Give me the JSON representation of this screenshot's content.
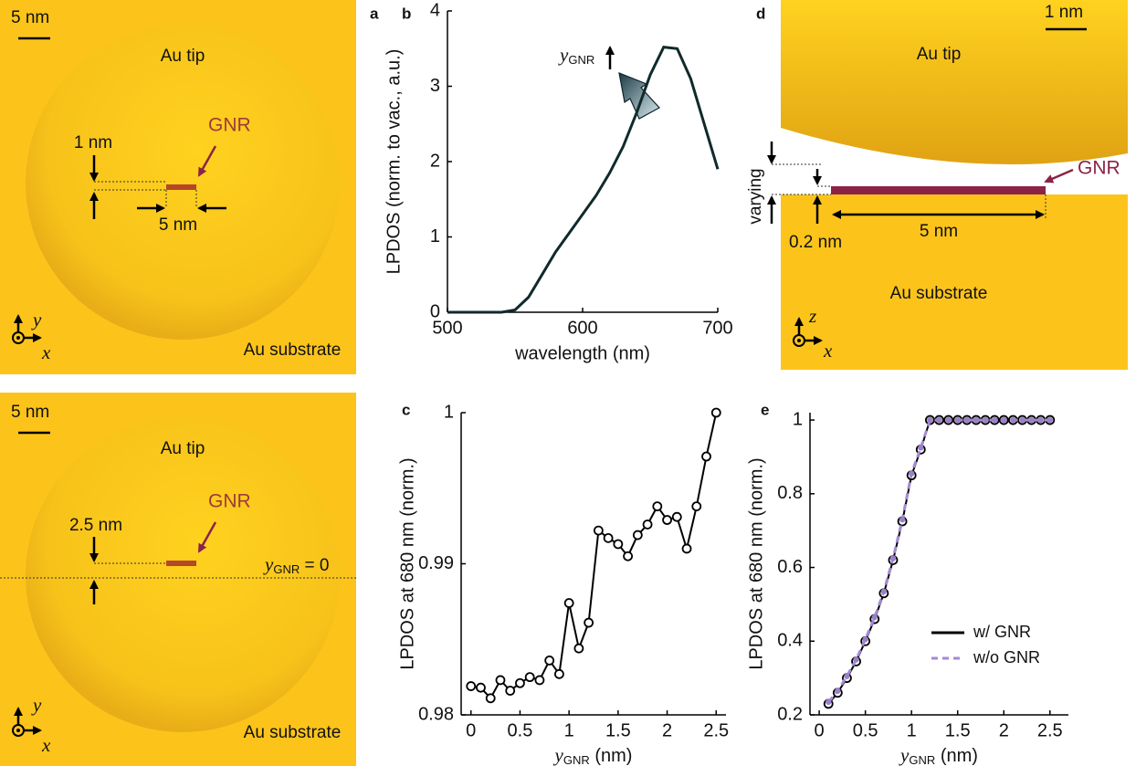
{
  "panel_labels": [
    "a",
    "b",
    "c",
    "d",
    "e"
  ],
  "panel_a_top": {
    "scale": "5 nm",
    "tip": "Au tip",
    "substrate": "Au substrate",
    "gnr": "GNR",
    "gap": "1 nm",
    "length": "5 nm",
    "axis_y": "y",
    "axis_x": "x"
  },
  "panel_a_bottom": {
    "scale": "5 nm",
    "tip": "Au tip",
    "substrate": "Au substrate",
    "gnr": "GNR",
    "offset": "2.5 nm",
    "line_var": "y",
    "line_sub": "GNR",
    "line_rest": " = 0",
    "axis_y": "y",
    "axis_x": "x"
  },
  "panel_d": {
    "scale": "1 nm",
    "tip": "Au tip",
    "substrate": "Au substrate",
    "gnr": "GNR",
    "varying": "varying",
    "gap": "0.2 nm",
    "length": "5 nm",
    "axis_z": "z",
    "axis_x": "x"
  },
  "chart_data": [
    {
      "type": "line",
      "x_label": "wavelength (nm)",
      "y_label": "LPDOS (norm. to vac., a.u.)",
      "annotation": {
        "var": "y",
        "sub": "GNR"
      },
      "x": [
        500,
        510,
        520,
        530,
        540,
        550,
        560,
        570,
        580,
        590,
        600,
        610,
        620,
        630,
        640,
        650,
        660,
        670,
        680,
        690,
        700
      ],
      "values": [
        0,
        0,
        0,
        0,
        0,
        0.03,
        0.2,
        0.5,
        0.8,
        1.05,
        1.3,
        1.55,
        1.85,
        2.2,
        2.65,
        3.15,
        3.52,
        3.5,
        3.1,
        2.5,
        1.9
      ],
      "color": "#102a2a",
      "xlim": [
        500,
        700
      ],
      "ylim": [
        0,
        4
      ],
      "xticks": [
        500,
        600,
        700
      ],
      "yticks": [
        0,
        1,
        2,
        3,
        4
      ]
    },
    {
      "type": "line",
      "x_label": {
        "var": "y",
        "sub": "GNR",
        "unit": " (nm)"
      },
      "y_label": "LPDOS at 680 nm (norm.)",
      "x": [
        0,
        0.1,
        0.2,
        0.3,
        0.4,
        0.5,
        0.6,
        0.7,
        0.8,
        0.9,
        1,
        1.1,
        1.2,
        1.3,
        1.4,
        1.5,
        1.6,
        1.7,
        1.8,
        1.9,
        2,
        2.1,
        2.2,
        2.3,
        2.4,
        2.5
      ],
      "values": [
        0.9819,
        0.9818,
        0.9811,
        0.9823,
        0.9816,
        0.9821,
        0.9825,
        0.9823,
        0.9836,
        0.9827,
        0.9874,
        0.9844,
        0.9861,
        0.9922,
        0.9917,
        0.9913,
        0.9905,
        0.9919,
        0.9926,
        0.9938,
        0.9929,
        0.9931,
        0.991,
        0.9938,
        0.9971,
        1.0
      ],
      "color": "#000000",
      "marker": "o",
      "marker_fill": "#ffffff",
      "xlim": [
        -0.1,
        2.6
      ],
      "ylim": [
        0.98,
        1.0
      ],
      "xticks": [
        0,
        0.5,
        1,
        1.5,
        2,
        2.5
      ],
      "yticks": [
        0.98,
        0.99,
        1
      ]
    },
    {
      "type": "line",
      "x_label": {
        "var": "y",
        "sub": "GNR",
        "unit": " (nm)"
      },
      "y_label": "LPDOS at 680 nm (norm.)",
      "x": [
        0.1,
        0.2,
        0.3,
        0.4,
        0.5,
        0.6,
        0.7,
        0.8,
        0.9,
        1,
        1.1,
        1.2,
        1.3,
        1.4,
        1.5,
        1.6,
        1.7,
        1.8,
        1.9,
        2,
        2.1,
        2.2,
        2.3,
        2.4,
        2.5
      ],
      "series": [
        {
          "name": "w/ GNR",
          "color": "#000000",
          "marker": "o",
          "marker_fill": "#ffffff",
          "values": [
            0.23,
            0.26,
            0.3,
            0.345,
            0.4,
            0.46,
            0.53,
            0.62,
            0.725,
            0.85,
            0.92,
            1.0,
            1.0,
            1.0,
            1.0,
            1.0,
            1.0,
            1.0,
            1.0,
            1.0,
            1.0,
            1.0,
            1.0,
            1.0,
            1.0
          ]
        },
        {
          "name": "w/o GNR",
          "color": "#a58ad6",
          "dash": true,
          "marker": "o",
          "marker_fill": "#9a80c8",
          "values": [
            0.235,
            0.265,
            0.305,
            0.35,
            0.405,
            0.465,
            0.535,
            0.625,
            0.73,
            0.855,
            0.925,
            1.0,
            1.0,
            1.0,
            1.0,
            1.0,
            1.0,
            1.0,
            1.0,
            1.0,
            1.0,
            1.0,
            1.0,
            1.0,
            1.0
          ]
        }
      ],
      "legend": "lower right",
      "xlim": [
        -0.1,
        2.7
      ],
      "ylim": [
        0.2,
        1.02
      ],
      "xticks": [
        0,
        0.5,
        1,
        1.5,
        2,
        2.5
      ],
      "yticks": [
        0.2,
        0.4,
        0.6,
        0.8,
        1
      ]
    }
  ]
}
